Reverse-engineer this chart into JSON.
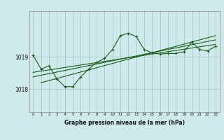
{
  "title": "Graphe pression niveau de la mer (hPa)",
  "bg_color": "#ceeaea",
  "grid_color": "#aac8c8",
  "line_color": "#1a5c1a",
  "marker_color": "#1a5c1a",
  "xlim": [
    -0.5,
    23.5
  ],
  "ylim": [
    1017.3,
    1020.4
  ],
  "yticks": [
    1018,
    1019
  ],
  "xticks": [
    0,
    1,
    2,
    3,
    4,
    5,
    6,
    7,
    8,
    9,
    10,
    11,
    12,
    13,
    14,
    15,
    16,
    17,
    18,
    19,
    20,
    21,
    22,
    23
  ],
  "main_series": [
    [
      0,
      1019.05
    ],
    [
      1,
      1018.62
    ],
    [
      2,
      1018.72
    ],
    [
      3,
      1018.32
    ],
    [
      4,
      1018.08
    ],
    [
      5,
      1018.08
    ],
    [
      6,
      1018.38
    ],
    [
      7,
      1018.62
    ],
    [
      8,
      1018.82
    ],
    [
      9,
      1018.95
    ],
    [
      10,
      1019.22
    ],
    [
      11,
      1019.65
    ],
    [
      12,
      1019.72
    ],
    [
      13,
      1019.62
    ],
    [
      14,
      1019.22
    ],
    [
      15,
      1019.12
    ],
    [
      16,
      1019.08
    ],
    [
      17,
      1019.1
    ],
    [
      18,
      1019.1
    ],
    [
      19,
      1019.15
    ],
    [
      20,
      1019.45
    ],
    [
      21,
      1019.22
    ],
    [
      22,
      1019.18
    ],
    [
      23,
      1019.32
    ]
  ],
  "trend_line1": [
    [
      0,
      1018.52
    ],
    [
      23,
      1019.38
    ]
  ],
  "trend_line2": [
    [
      0,
      1018.38
    ],
    [
      23,
      1019.52
    ]
  ],
  "trend_line3": [
    [
      1,
      1018.2
    ],
    [
      23,
      1019.65
    ]
  ]
}
